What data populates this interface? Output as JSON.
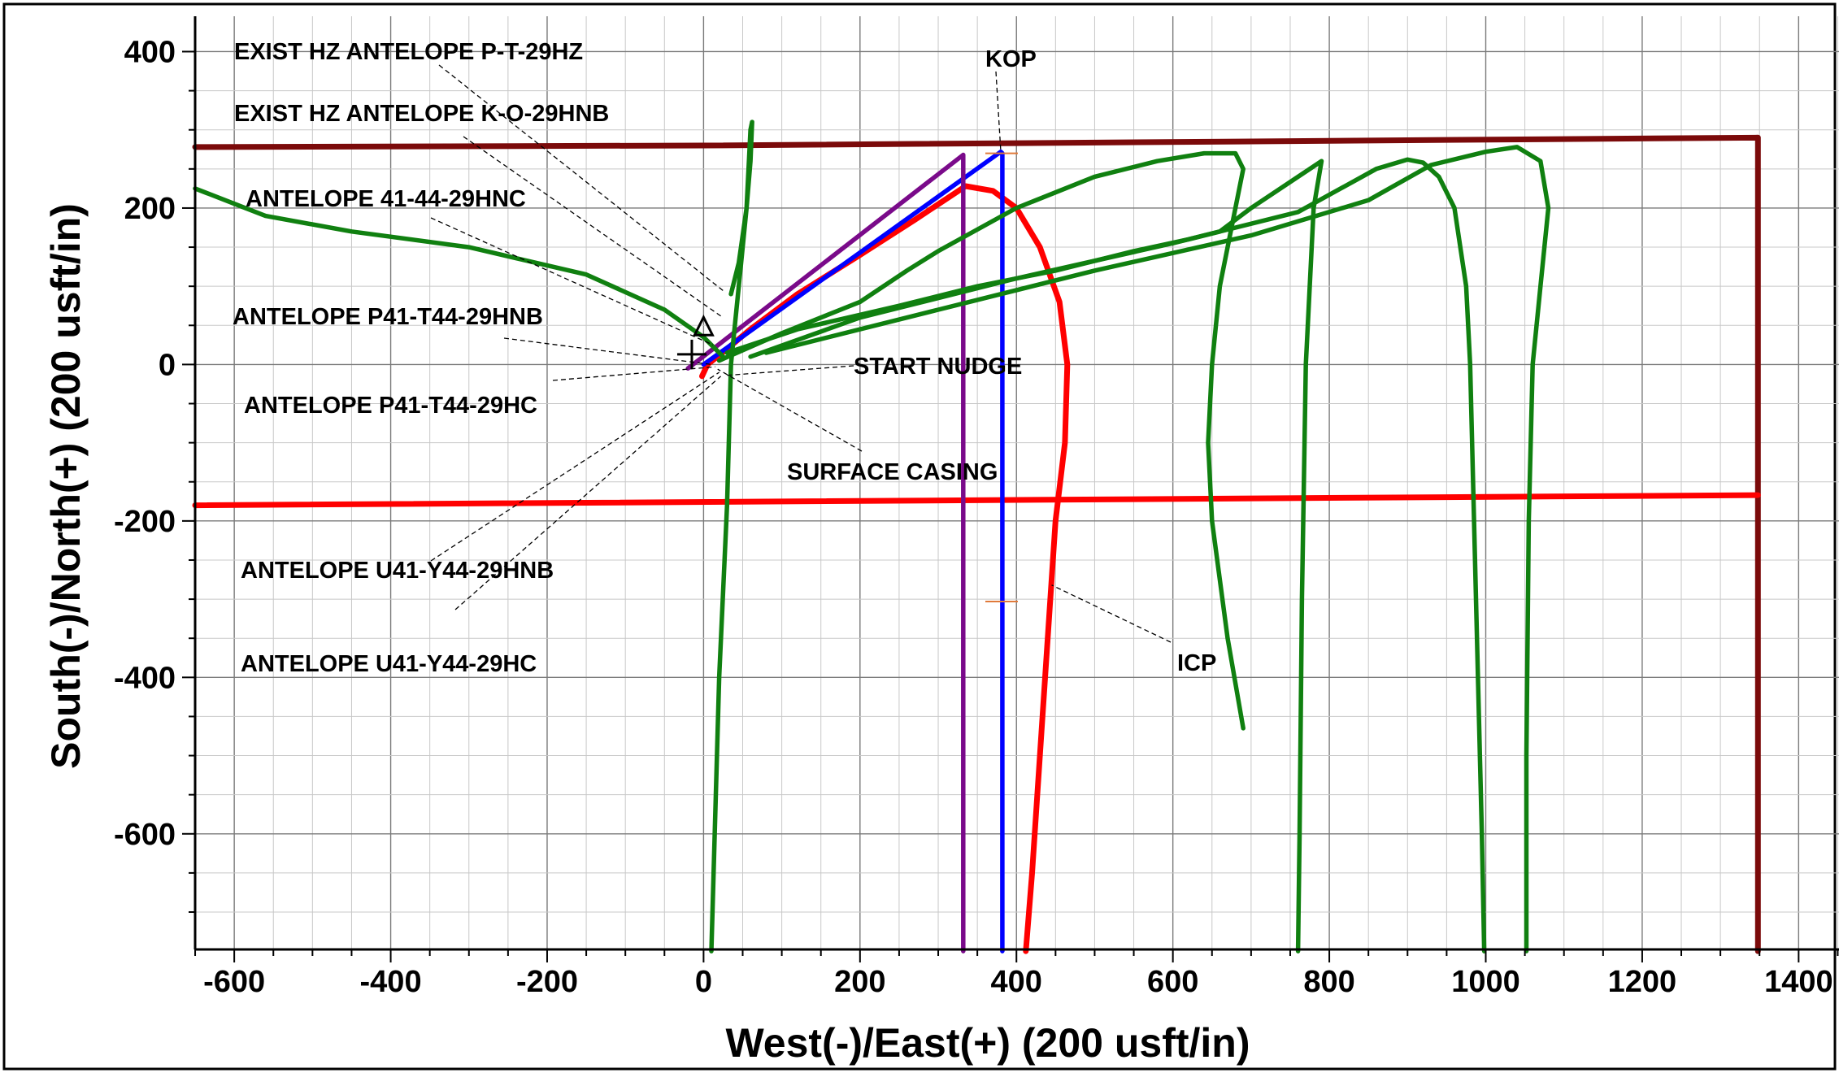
{
  "chart_data": {
    "type": "line",
    "title": "",
    "xlabel": "West(-)/East(+) (200 usft/in)",
    "ylabel": "South(-)/North(+) (200 usft/in)",
    "xlim": [
      -650,
      1450
    ],
    "ylim": [
      -750,
      420
    ],
    "xticks": [
      -600,
      -400,
      -200,
      0,
      200,
      400,
      600,
      800,
      1000,
      1200,
      1400
    ],
    "yticks": [
      400,
      200,
      0,
      -200,
      -400,
      -600
    ],
    "grid": true,
    "colors": {
      "dark_red": "#7b0a0a",
      "red": "#ff0000",
      "green": "#108010",
      "blue": "#0000ff",
      "purple": "#7a0a8a",
      "orange": "#e07a3a"
    },
    "series": [
      {
        "color": "#7b0a0a",
        "x": [
          -650,
          0,
          1348,
          1348
        ],
        "y": [
          278,
          280,
          290,
          -750
        ]
      },
      {
        "color": "#ff0000",
        "x": [
          -650,
          1348
        ],
        "y": [
          -180,
          -167
        ]
      },
      {
        "color": "#ff0000",
        "x": [
          -2,
          5,
          30,
          60,
          120,
          200,
          270,
          335,
          370,
          400,
          430,
          455,
          465,
          462,
          450,
          440,
          430,
          420,
          412
        ],
        "y": [
          -15,
          0,
          20,
          45,
          90,
          140,
          185,
          228,
          222,
          200,
          150,
          80,
          0,
          -100,
          -200,
          -350,
          -500,
          -650,
          -750
        ]
      },
      {
        "color": "#0000ff",
        "x": [
          0,
          380,
          382,
          382
        ],
        "y": [
          0,
          272,
          270,
          -750
        ]
      },
      {
        "color": "#7a0a8a",
        "x": [
          -20,
          332,
          332
        ],
        "y": [
          -5,
          268,
          -750
        ]
      },
      {
        "color": "#108010",
        "x": [
          -650,
          -560,
          -450,
          -300,
          -150,
          -50,
          0,
          15,
          25
        ],
        "y": [
          225,
          190,
          170,
          150,
          115,
          70,
          35,
          20,
          10
        ]
      },
      {
        "color": "#108010",
        "x": [
          10,
          20,
          30,
          35,
          45,
          50,
          55,
          58,
          60,
          62,
          60,
          55,
          45,
          35
        ],
        "y": [
          -750,
          -400,
          -180,
          0,
          100,
          150,
          200,
          260,
          300,
          310,
          260,
          200,
          130,
          90
        ]
      },
      {
        "color": "#108010",
        "x": [
          20,
          100,
          200,
          260,
          300,
          400,
          500,
          580,
          640,
          680,
          690,
          680,
          660,
          650,
          645,
          650,
          670,
          690
        ],
        "y": [
          5,
          40,
          80,
          120,
          145,
          200,
          240,
          260,
          270,
          270,
          250,
          200,
          100,
          0,
          -100,
          -200,
          -350,
          -465
        ]
      },
      {
        "color": "#108010",
        "x": [
          30,
          120,
          250,
          350,
          450,
          550,
          620,
          660,
          700,
          760,
          790,
          780,
          770,
          765,
          762,
          760
        ],
        "y": [
          15,
          45,
          75,
          100,
          120,
          145,
          160,
          170,
          200,
          240,
          260,
          200,
          0,
          -300,
          -600,
          -750
        ]
      },
      {
        "color": "#108010",
        "x": [
          60,
          200,
          400,
          600,
          760,
          860,
          900,
          920,
          940,
          960,
          975,
          980,
          985,
          990,
          995,
          998
        ],
        "y": [
          10,
          60,
          110,
          155,
          195,
          250,
          262,
          258,
          240,
          200,
          100,
          0,
          -200,
          -400,
          -600,
          -750
        ]
      },
      {
        "color": "#108010",
        "x": [
          80,
          300,
          500,
          700,
          850,
          930,
          1000,
          1040,
          1070,
          1080,
          1070,
          1060,
          1055,
          1052,
          1052
        ],
        "y": [
          15,
          70,
          120,
          165,
          210,
          255,
          272,
          278,
          260,
          200,
          100,
          0,
          -200,
          -500,
          -750
        ]
      }
    ],
    "annotations": [
      {
        "text": "EXIST HZ ANTELOPE P-T-29HZ",
        "point": [
          28,
          92
        ]
      },
      {
        "text": "EXIST HZ ANTELOPE K-O-29HNB",
        "point": [
          22,
          62
        ]
      },
      {
        "text": "ANTELOPE 41-44-29HNC",
        "point": [
          12,
          25
        ]
      },
      {
        "text": "ANTELOPE P41-T44-29HNB",
        "point": [
          10,
          0
        ]
      },
      {
        "text": "START NUDGE",
        "point": [
          28,
          -14
        ]
      },
      {
        "text": "ANTELOPE P41-T44-29HC",
        "point": [
          15,
          -3
        ]
      },
      {
        "text": "SURFACE CASING",
        "point": [
          18,
          -6
        ]
      },
      {
        "text": "KOP",
        "point": [
          380,
          272
        ]
      },
      {
        "text": "ANTELOPE U41-Y44-29HNB",
        "point": [
          20,
          -10
        ]
      },
      {
        "text": "ANTELOPE U41-Y44-29HC",
        "point": [
          22,
          -15
        ]
      },
      {
        "text": "ICP",
        "point": [
          445,
          -282
        ]
      }
    ],
    "markers": [
      {
        "type": "triangle",
        "x": 0,
        "y": 48
      },
      {
        "type": "cross",
        "x": -15,
        "y": 13
      }
    ]
  }
}
